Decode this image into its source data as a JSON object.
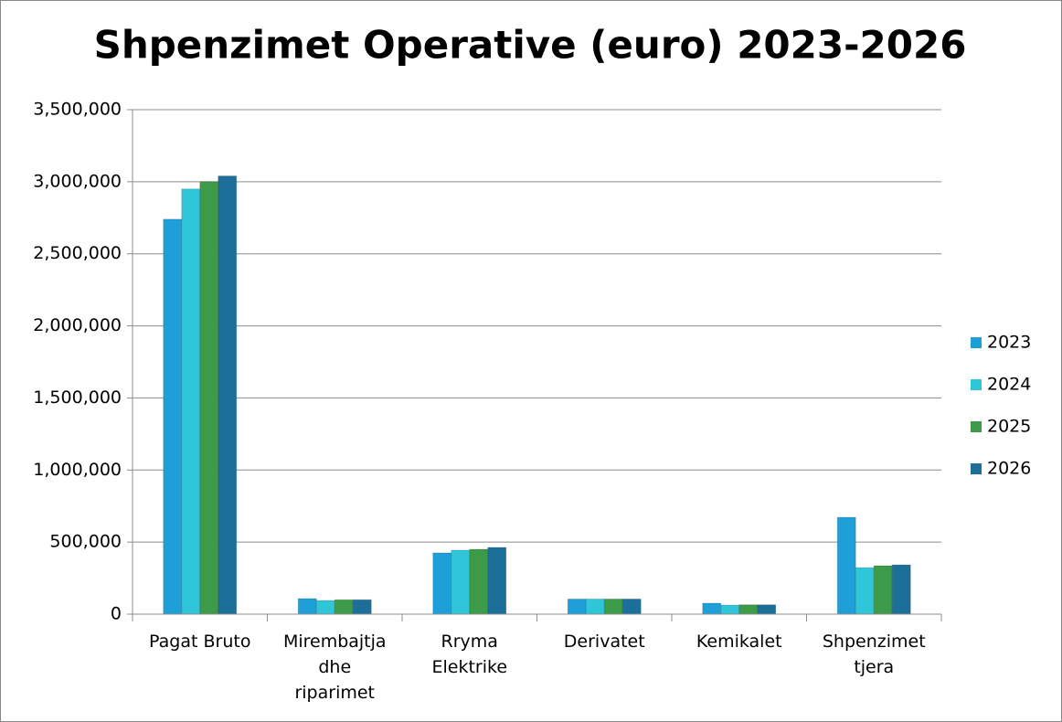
{
  "chart_data": {
    "type": "bar",
    "title": "Shpenzimet Operative (euro) 2023-2026",
    "categories": [
      "Pagat Bruto",
      "Mirembajtja dhe riparimet",
      "Rryma Elektrike",
      "Derivatet",
      "Kemikalet",
      "Shpenzimet tjera"
    ],
    "series": [
      {
        "name": "2023",
        "color": "#1e9fd8",
        "values": [
          2740000,
          108000,
          425000,
          105000,
          76000,
          672000
        ]
      },
      {
        "name": "2024",
        "color": "#2fc6da",
        "values": [
          2950000,
          95000,
          444000,
          105000,
          63000,
          323000
        ]
      },
      {
        "name": "2025",
        "color": "#3c9a48",
        "values": [
          3000000,
          100000,
          450000,
          105000,
          65000,
          336000
        ]
      },
      {
        "name": "2026",
        "color": "#1c6f99",
        "values": [
          3040000,
          100000,
          463000,
          105000,
          65000,
          342000
        ]
      }
    ],
    "ylim": [
      0,
      3500000
    ],
    "yticks": [
      0,
      {
        "value": 500000,
        "label": "500,000"
      },
      {
        "value": 1000000,
        "label": "1,000,000"
      },
      {
        "value": 1500000,
        "label": "1,500,000"
      },
      {
        "value": 2000000,
        "label": "2,000,000"
      },
      {
        "value": 2500000,
        "label": "2,500,000"
      },
      {
        "value": 3000000,
        "label": "3,000,000"
      },
      {
        "value": 3500000,
        "label": "3,500,000"
      }
    ],
    "grid": true,
    "legend": "right"
  }
}
